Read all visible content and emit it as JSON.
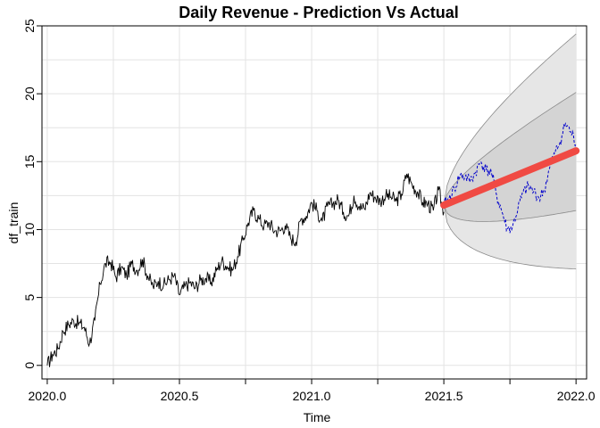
{
  "chart_data": {
    "type": "line",
    "title": "Daily Revenue - Prediction Vs Actual",
    "xlabel": "Time",
    "ylabel": "df_train",
    "xlim": [
      2019.98,
      2022.04
    ],
    "ylim": [
      -1,
      25
    ],
    "xticks": [
      2020.0,
      2020.5,
      2021.0,
      2021.5,
      2022.0
    ],
    "xtick_labels": [
      "2020.0",
      "2020.5",
      "2021.0",
      "2021.5",
      "2022.0"
    ],
    "yticks": [
      0,
      5,
      10,
      15,
      20,
      25
    ],
    "ytick_labels": [
      "0",
      "5",
      "10",
      "15",
      "20",
      "25"
    ],
    "grid": true,
    "colors": {
      "train": "#000000",
      "actual": "#0000cc",
      "forecast": "#f04a43",
      "band95": "#e6e6e6",
      "band80": "#d4d4d4",
      "band_edge": "#8a8a8a",
      "grid": "#e3e3e3"
    },
    "series": [
      {
        "style": "solid-black",
        "x": [
          2020.0,
          2020.02,
          2020.04,
          2020.06,
          2020.08,
          2020.1,
          2020.12,
          2020.14,
          2020.16,
          2020.18,
          2020.2,
          2020.22,
          2020.24,
          2020.26,
          2020.28,
          2020.3,
          2020.32,
          2020.34,
          2020.36,
          2020.38,
          2020.4,
          2020.42,
          2020.44,
          2020.46,
          2020.48,
          2020.5,
          2020.52,
          2020.54,
          2020.56,
          2020.58,
          2020.6,
          2020.62,
          2020.64,
          2020.66,
          2020.68,
          2020.7,
          2020.72,
          2020.74,
          2020.76,
          2020.78,
          2020.8,
          2020.82,
          2020.84,
          2020.86,
          2020.88,
          2020.9,
          2020.92,
          2020.94,
          2020.96,
          2020.98,
          2021.0,
          2021.02,
          2021.04,
          2021.06,
          2021.08,
          2021.1,
          2021.12,
          2021.14,
          2021.16,
          2021.18,
          2021.2,
          2021.22,
          2021.24,
          2021.26,
          2021.28,
          2021.3,
          2021.32,
          2021.34,
          2021.36,
          2021.38,
          2021.4,
          2021.42,
          2021.44,
          2021.46,
          2021.48,
          2021.5
        ],
        "y": [
          0.0,
          0.8,
          1.2,
          2.5,
          3.0,
          3.3,
          3.1,
          2.8,
          1.6,
          3.3,
          6.0,
          7.5,
          7.6,
          6.5,
          7.2,
          6.6,
          7.5,
          7.0,
          7.8,
          6.6,
          5.8,
          6.2,
          5.9,
          6.3,
          6.6,
          5.2,
          5.8,
          6.1,
          5.7,
          6.3,
          6.4,
          6.1,
          7.0,
          7.7,
          7.3,
          7.0,
          8.0,
          9.2,
          10.5,
          11.4,
          10.8,
          10.3,
          10.5,
          9.9,
          9.9,
          10.3,
          9.4,
          9.1,
          10.8,
          11.0,
          12.0,
          11.4,
          10.6,
          11.7,
          11.9,
          12.2,
          11.3,
          11.0,
          12.5,
          11.7,
          11.5,
          12.7,
          12.4,
          12.1,
          12.5,
          12.4,
          12.1,
          12.6,
          14.1,
          13.3,
          12.8,
          12.0,
          11.9,
          11.4,
          12.9,
          11.3
        ]
      },
      {
        "style": "dashed-blue",
        "x": [
          2021.5,
          2021.52,
          2021.54,
          2021.56,
          2021.58,
          2021.6,
          2021.62,
          2021.64,
          2021.66,
          2021.68,
          2021.7,
          2021.72,
          2021.74,
          2021.76,
          2021.78,
          2021.8,
          2021.82,
          2021.84,
          2021.86,
          2021.88,
          2021.9,
          2021.92,
          2021.94,
          2021.96,
          2021.98,
          2022.0
        ],
        "y": [
          11.8,
          12.3,
          13.0,
          14.0,
          13.9,
          13.6,
          14.2,
          15.0,
          14.4,
          14.2,
          12.5,
          11.3,
          10.0,
          10.2,
          11.5,
          12.7,
          13.2,
          12.8,
          12.3,
          12.9,
          14.5,
          15.6,
          16.5,
          17.8,
          17.2,
          16.3
        ]
      }
    ],
    "forecast": {
      "x_start": 2021.5,
      "x_end": 2022.0,
      "y_start": 11.8,
      "y_end": 15.8,
      "upper80_end": 20.1,
      "lower80_end": 11.4,
      "upper95_end": 24.4,
      "lower95_end": 7.1
    }
  }
}
